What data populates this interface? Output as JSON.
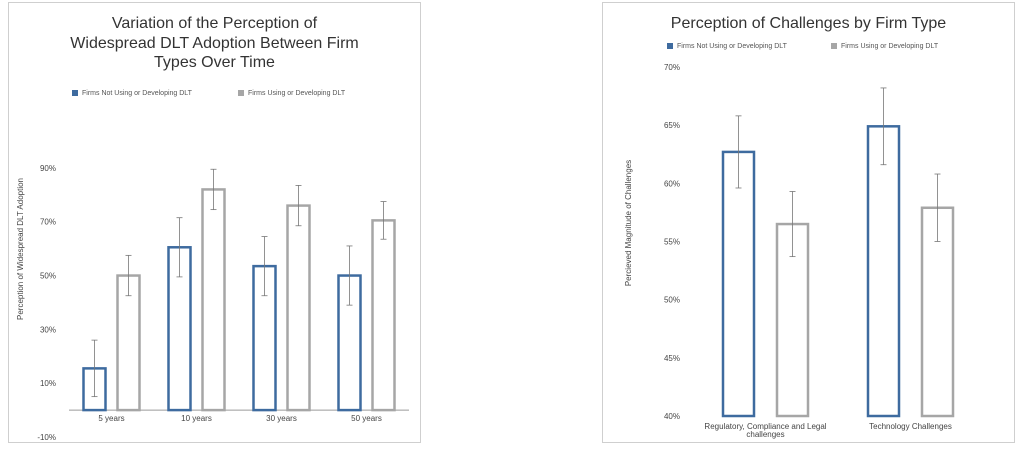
{
  "chart_data": [
    {
      "type": "bar",
      "title": "Variation of the Perception of\nWidespread DLT Adoption Between Firm\nTypes Over Time",
      "xlabel": "",
      "ylabel": "Perception of Widespread DLT Adoption",
      "categories": [
        "5 years",
        "10 years",
        "30 years",
        "50 years"
      ],
      "series": [
        {
          "name": "Firms Not Using or Developing DLT",
          "color": "#3e6b9f",
          "values": [
            15.5,
            60.5,
            53.5,
            50
          ],
          "errors": [
            10.5,
            11,
            11,
            11
          ]
        },
        {
          "name": "Firms Using or Developing DLT",
          "color": "#a6a6a6",
          "values": [
            50,
            82,
            76,
            70.5
          ],
          "errors": [
            7.5,
            7.5,
            7.5,
            7
          ]
        }
      ],
      "ylim": [
        -10,
        100
      ],
      "yticks": [
        -10,
        10,
        30,
        50,
        70,
        90
      ],
      "ytick_labels": [
        "-10%",
        "10%",
        "30%",
        "50%",
        "70%",
        "90%"
      ],
      "baseline": 0,
      "grid": false,
      "legend": "top"
    },
    {
      "type": "bar",
      "title": "Perception of Challenges by Firm Type",
      "xlabel": "",
      "ylabel": "Percieved Magnitude of Challenges",
      "categories": [
        "Regulatory, Compliance and Legal\nchallenges",
        "Technology Challenges"
      ],
      "series": [
        {
          "name": "Firms Not Using or Developing DLT",
          "color": "#3e6b9f",
          "values": [
            62.7,
            64.9
          ],
          "errors": [
            3.1,
            3.3
          ]
        },
        {
          "name": "Firms Using or Developing DLT",
          "color": "#a6a6a6",
          "values": [
            56.5,
            57.9
          ],
          "errors": [
            2.8,
            2.9
          ]
        }
      ],
      "ylim": [
        40,
        70
      ],
      "yticks": [
        40,
        45,
        50,
        55,
        60,
        65,
        70
      ],
      "ytick_labels": [
        "40%",
        "45%",
        "50%",
        "55%",
        "60%",
        "65%",
        "70%"
      ],
      "baseline": 40,
      "grid": false,
      "legend": "top"
    }
  ]
}
